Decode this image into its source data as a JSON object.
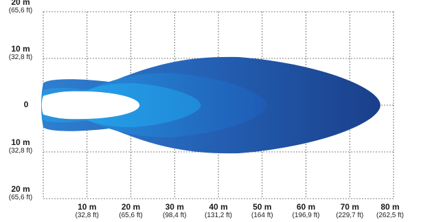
{
  "chart_data": {
    "type": "area",
    "title": "",
    "xlabel": "",
    "ylabel": "",
    "xlim": [
      0,
      80
    ],
    "ylim": [
      -20,
      20
    ],
    "grid": true,
    "x_ticks": [
      {
        "value": 10,
        "m": "10 m",
        "ft": "(32,8 ft)"
      },
      {
        "value": 20,
        "m": "20 m",
        "ft": "(65,6 ft)"
      },
      {
        "value": 30,
        "m": "30 m",
        "ft": "(98,4 ft)"
      },
      {
        "value": 40,
        "m": "40 m",
        "ft": "(131,2 ft)"
      },
      {
        "value": 50,
        "m": "50 m",
        "ft": "(164 ft)"
      },
      {
        "value": 60,
        "m": "60 m",
        "ft": "(196,9 ft)"
      },
      {
        "value": 70,
        "m": "70 m",
        "ft": "(229,7 ft)"
      },
      {
        "value": 80,
        "m": "80 m",
        "ft": "(262,5 ft)"
      }
    ],
    "y_ticks": [
      {
        "value": 20,
        "m": "20 m",
        "ft": "(65,6 ft)"
      },
      {
        "value": 10,
        "m": "10 m",
        "ft": "(32,8 ft)"
      },
      {
        "value": 0,
        "m": "0",
        "ft": ""
      },
      {
        "value": -10,
        "m": "10 m",
        "ft": "(32,8 ft)"
      },
      {
        "value": -20,
        "m": "20 m",
        "ft": "(65,6 ft)"
      }
    ],
    "zones": [
      {
        "max_distance": 77,
        "half_width_max": 10.5,
        "color": "#1d4a9c"
      },
      {
        "max_distance": 51,
        "half_width_max": 7.0,
        "color": "#1966c2"
      },
      {
        "max_distance": 36,
        "half_width_max": 4.8,
        "color": "#1a8ad6"
      },
      {
        "max_distance": 22,
        "half_width_max": 2.8,
        "color": "#ffffff"
      }
    ]
  }
}
